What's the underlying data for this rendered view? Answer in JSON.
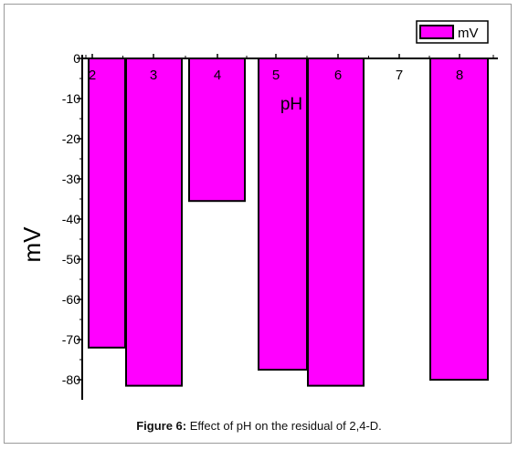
{
  "chart_data": {
    "type": "bar",
    "xlabel": "pH",
    "ylabel": "mV",
    "categories": [
      "2",
      "3",
      "4",
      "5",
      "6",
      "7",
      "8"
    ],
    "series": [
      {
        "name": "mV",
        "color": "#ff00ff",
        "values": [
          -72,
          -81.5,
          -35.5,
          -77.5,
          -81.5,
          null,
          -80
        ]
      }
    ],
    "ylim": [
      -85,
      0
    ],
    "yticks": [
      0,
      -10,
      -20,
      -30,
      -40,
      -50,
      -60,
      -70,
      -80
    ],
    "legend_position": "top-right",
    "grid": false
  },
  "caption": {
    "label": "Figure 6:",
    "text": " Effect of pH on the residual of 2,4-D."
  }
}
